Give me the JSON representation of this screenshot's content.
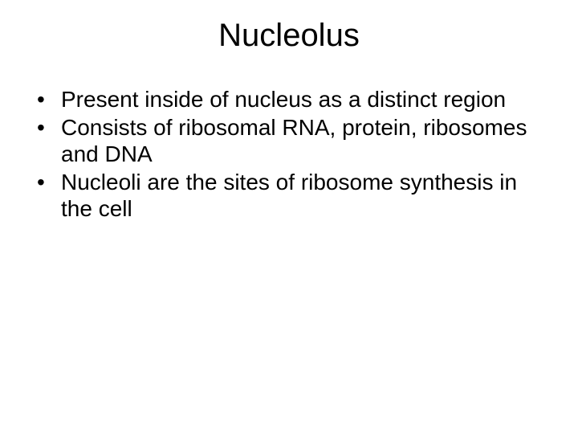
{
  "slide": {
    "title": "Nucleolus",
    "title_fontsize": 40,
    "body_fontsize": 28,
    "background_color": "#ffffff",
    "text_color": "#000000",
    "bullets": [
      "Present inside of nucleus as a distinct region",
      "Consists of ribosomal RNA, protein, ribosomes and DNA",
      "Nucleoli are the sites of ribosome synthesis in the cell"
    ]
  }
}
